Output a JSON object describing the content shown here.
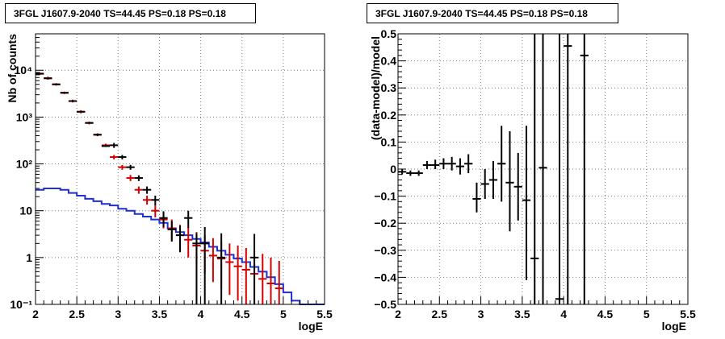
{
  "chart_data": [
    {
      "type": "line",
      "title": "3FGL J1607.9-2040 TS=44.45 PS=0.18 PS=0.18",
      "xlabel": "logE",
      "ylabel": "Nb of counts",
      "xlim": [
        2,
        5.5
      ],
      "ylim": [
        0.1,
        60000
      ],
      "yscale": "log",
      "grid": true,
      "xticks": [
        "2",
        "2.5",
        "3",
        "3.5",
        "4",
        "4.5",
        "5",
        "5.5"
      ],
      "yticks": [
        {
          "value": 0.1,
          "label": "10⁻¹"
        },
        {
          "value": 1,
          "label": "1"
        },
        {
          "value": 10,
          "label": "10"
        },
        {
          "value": 100,
          "label": "10²"
        },
        {
          "value": 1000,
          "label": "10³"
        },
        {
          "value": 10000,
          "label": "10⁴"
        }
      ],
      "bin_edges": [
        2.0,
        2.1,
        2.2,
        2.3,
        2.4,
        2.5,
        2.6,
        2.7,
        2.8,
        2.9,
        3.0,
        3.1,
        3.2,
        3.3,
        3.4,
        3.5,
        3.6,
        3.7,
        3.8,
        3.9,
        4.0,
        4.1,
        4.2,
        4.3,
        4.4,
        4.5,
        4.6,
        4.7,
        4.8,
        4.9,
        5.0,
        5.1,
        5.2,
        5.3,
        5.4,
        5.5
      ],
      "series": [
        {
          "kind": "histogram",
          "color": "#1f2fd0",
          "values": [
            28,
            30,
            30,
            28,
            24,
            21,
            18,
            16,
            14,
            13,
            11,
            10,
            8.5,
            7.5,
            6.5,
            5.5,
            4.2,
            3.5,
            3.0,
            2.5,
            2.1,
            1.7,
            1.4,
            1.15,
            0.95,
            0.8,
            0.63,
            0.5,
            0.38,
            0.27,
            0.18,
            0.12,
            0.1,
            0.1,
            0.1
          ]
        },
        {
          "kind": "points",
          "color": "#d40000",
          "x": [
            2.05,
            2.15,
            2.25,
            2.35,
            2.45,
            2.55,
            2.65,
            2.75,
            2.85,
            2.95,
            3.05,
            3.15,
            3.25,
            3.35,
            3.45,
            3.55,
            3.65,
            3.75,
            3.85,
            3.95,
            4.05,
            4.15,
            4.25,
            4.35,
            4.45,
            4.55,
            4.65,
            4.75,
            4.85,
            4.95
          ],
          "y": [
            8500,
            6800,
            5000,
            3300,
            2200,
            1300,
            750,
            420,
            250,
            140,
            85,
            50,
            28,
            17,
            10,
            6.5,
            4.2,
            3.0,
            2.4,
            1.8,
            1.4,
            1.1,
            0.95,
            0.8,
            0.65,
            0.55,
            0.45,
            0.35,
            0.28,
            0.22
          ],
          "ylow": [
            7900,
            6300,
            4700,
            3100,
            2050,
            1200,
            700,
            390,
            230,
            125,
            75,
            43,
            23,
            13.5,
            7.2,
            4.2,
            2.2,
            1.4,
            1.0,
            0.7,
            0.45,
            0.3,
            0.22,
            0.16,
            0.12,
            0.1,
            0.1,
            0.1,
            0.1,
            0.1
          ],
          "yhigh": [
            9100,
            7300,
            5300,
            3500,
            2350,
            1400,
            800,
            450,
            270,
            155,
            95,
            58,
            33,
            21,
            13,
            8.8,
            6.5,
            5.0,
            4.5,
            3.5,
            2.9,
            2.6,
            2.3,
            2.0,
            1.8,
            1.6,
            1.4,
            1.2,
            1.0,
            0.85
          ]
        },
        {
          "kind": "points",
          "color": "#000000",
          "x": [
            2.05,
            2.15,
            2.25,
            2.35,
            2.45,
            2.55,
            2.65,
            2.75,
            2.85,
            2.95,
            3.05,
            3.15,
            3.25,
            3.35,
            3.45,
            3.55,
            3.65,
            3.75,
            3.85,
            3.95,
            4.05,
            4.25,
            4.65
          ],
          "y": [
            8400,
            6700,
            5000,
            3300,
            2200,
            1300,
            750,
            420,
            240,
            250,
            140,
            85,
            50,
            28,
            17,
            7,
            4,
            3,
            7,
            2,
            2,
            1,
            1
          ],
          "ylow": [
            8200,
            6550,
            4900,
            3250,
            2150,
            1270,
            730,
            400,
            230,
            220,
            125,
            75,
            43,
            23,
            13,
            4.5,
            2.2,
            1.3,
            4.3,
            0.1,
            0.1,
            0.1,
            0.1
          ],
          "yhigh": [
            8600,
            6850,
            5100,
            3350,
            2250,
            1330,
            770,
            440,
            255,
            280,
            155,
            95,
            57,
            33,
            21,
            9.7,
            6,
            4.8,
            10,
            3.3,
            4.5,
            3.3,
            3.2
          ]
        }
      ]
    },
    {
      "type": "scatter",
      "title": "3FGL J1607.9-2040 TS=44.45 PS=0.18 PS=0.18",
      "xlabel": "logE",
      "ylabel": "(data-model)/model",
      "xlim": [
        2,
        5.5
      ],
      "ylim": [
        -0.5,
        0.5
      ],
      "grid": true,
      "xticks": [
        "2",
        "2.5",
        "3",
        "3.5",
        "4",
        "4.5",
        "5",
        "5.5"
      ],
      "yticks": [
        "−0.5",
        "−0.4",
        "−0.3",
        "−0.2",
        "−0.1",
        "0",
        "0.1",
        "0.2",
        "0.3",
        "0.4",
        "0.5"
      ],
      "series": [
        {
          "color": "#000000",
          "x": [
            2.05,
            2.15,
            2.25,
            2.35,
            2.45,
            2.55,
            2.65,
            2.75,
            2.85,
            2.95,
            3.05,
            3.15,
            3.25,
            3.35,
            3.45,
            3.55,
            3.65,
            3.75,
            3.95,
            4.05,
            4.25
          ],
          "y": [
            -0.01,
            -0.015,
            -0.015,
            0.015,
            0.015,
            0.02,
            0.02,
            0.01,
            0.02,
            -0.11,
            -0.055,
            -0.04,
            0.02,
            -0.05,
            -0.065,
            -0.115,
            -0.33,
            0.005,
            -0.48,
            0.455,
            0.42
          ],
          "ylow": [
            -0.02,
            -0.025,
            -0.025,
            0.0,
            0.0,
            0.0,
            -0.005,
            -0.02,
            -0.015,
            -0.16,
            -0.11,
            -0.11,
            -0.12,
            -0.23,
            -0.19,
            -0.41,
            -0.5,
            -0.5,
            -0.5,
            -0.5,
            -0.5
          ],
          "yhigh": [
            0.0,
            -0.005,
            -0.005,
            0.03,
            0.035,
            0.04,
            0.045,
            0.04,
            0.055,
            -0.05,
            0.0,
            0.03,
            0.16,
            0.14,
            0.06,
            0.16,
            0.5,
            0.5,
            0.5,
            0.5,
            0.5
          ]
        }
      ]
    }
  ]
}
